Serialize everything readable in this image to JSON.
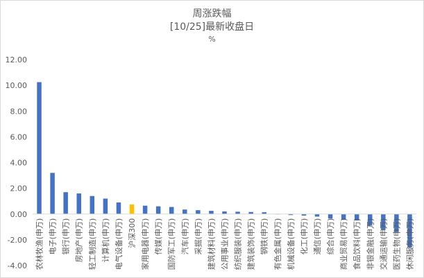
{
  "chart_data": {
    "type": "bar",
    "title": "周涨跌幅",
    "subtitle": "[10/25]最新收盘日",
    "unit": "%",
    "ylim": [
      -4,
      12
    ],
    "yticks": [
      "-4.00",
      "-2.00",
      "0.00",
      "2.00",
      "4.00",
      "6.00",
      "8.00",
      "10.00",
      "12.00"
    ],
    "ytick_values": [
      -4,
      -2,
      0,
      2,
      4,
      6,
      8,
      10,
      12
    ],
    "grid": false,
    "colors": {
      "default": "#4472c4",
      "highlight": "#ffc000"
    },
    "highlight_category": "沪深300",
    "categories": [
      "农林牧渔(申万)",
      "电子(申万)",
      "银行(申万)",
      "房地产(申万)",
      "轻工制造(申万)",
      "计算机(申万)",
      "电气设备(申万)",
      "沪深300",
      "家用电器(申万)",
      "传媒(申万)",
      "国防军工(申万)",
      "汽车(申万)",
      "采掘(申万)",
      "建筑材料(申万)",
      "公用事业(申万)",
      "纺织服装(申万)",
      "建筑装饰(申万)",
      "钢铁(申万)",
      "有色金属(申万)",
      "机械设备(申万)",
      "化工(申万)",
      "通信(申万)",
      "综合(申万)",
      "商业贸易(申万)",
      "食品饮料(申万)",
      "非银金融(申万)",
      "交通运输(申万)",
      "医药生物(申万)",
      "休闲服务(申万)"
    ],
    "values": [
      10.25,
      3.2,
      1.7,
      1.6,
      1.4,
      1.2,
      0.9,
      0.75,
      0.65,
      0.6,
      0.55,
      0.35,
      0.3,
      0.25,
      0.2,
      0.18,
      0.16,
      0.14,
      0.02,
      -0.08,
      -0.12,
      -0.2,
      -0.35,
      -0.45,
      -0.5,
      -0.9,
      -1.2,
      -1.4,
      -2.6
    ]
  }
}
